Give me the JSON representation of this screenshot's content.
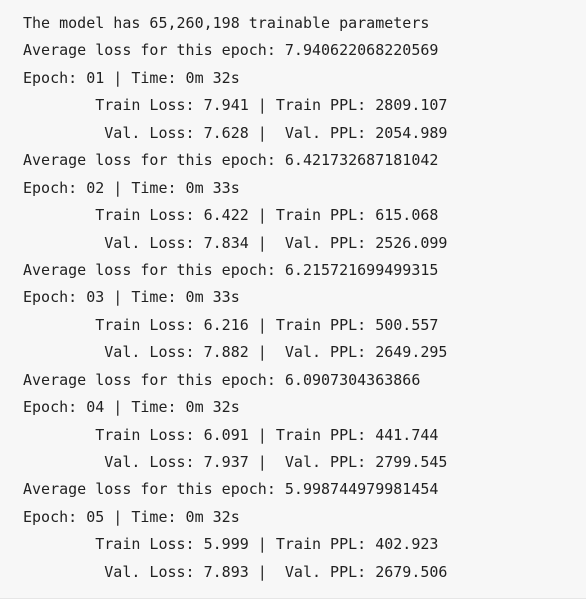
{
  "output": {
    "lines": [
      "The model has 65,260,198 trainable parameters",
      "Average loss for this epoch: 7.940622068220569",
      "Epoch: 01 | Time: 0m 32s",
      "\tTrain Loss: 7.941 | Train PPL: 2809.107",
      "\t Val. Loss: 7.628 |  Val. PPL: 2054.989",
      "Average loss for this epoch: 6.421732687181042",
      "Epoch: 02 | Time: 0m 33s",
      "\tTrain Loss: 6.422 | Train PPL: 615.068",
      "\t Val. Loss: 7.834 |  Val. PPL: 2526.099",
      "Average loss for this epoch: 6.215721699499315",
      "Epoch: 03 | Time: 0m 33s",
      "\tTrain Loss: 6.216 | Train PPL: 500.557",
      "\t Val. Loss: 7.882 |  Val. PPL: 2649.295",
      "Average loss for this epoch: 6.0907304363866",
      "Epoch: 04 | Time: 0m 32s",
      "\tTrain Loss: 6.091 | Train PPL: 441.744",
      "\t Val. Loss: 7.937 |  Val. PPL: 2799.545",
      "Average loss for this epoch: 5.998744979981454",
      "Epoch: 05 | Time: 0m 32s",
      "\tTrain Loss: 5.999 | Train PPL: 402.923",
      "\t Val. Loss: 7.893 |  Val. PPL: 2679.506"
    ]
  }
}
